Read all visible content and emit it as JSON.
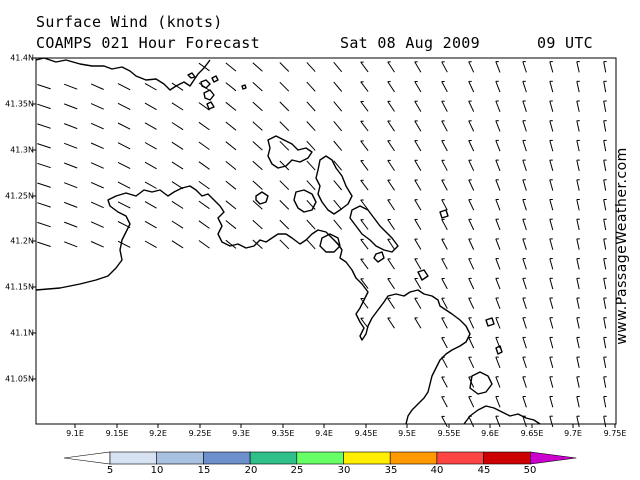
{
  "header": {
    "line1": "Surface Wind (knots)",
    "model": "COAMPS 021 Hour Forecast",
    "date": "Sat 08 Aug 2009",
    "time": "09 UTC"
  },
  "watermark": "www.PassageWeather.com",
  "latitude_labels": [
    "41.4N",
    "41.35N",
    "41.3N",
    "41.25N",
    "41.2N",
    "41.15N",
    "41.1N",
    "41.05N"
  ],
  "longitude_labels": [
    "9.1E",
    "9.15E",
    "9.2E",
    "9.25E",
    "9.3E",
    "9.35E",
    "9.4E",
    "9.45E",
    "9.5E",
    "9.55E",
    "9.6E",
    "9.65E",
    "9.7E",
    "9.75E"
  ],
  "colorbar": {
    "labels": [
      "5",
      "10",
      "15",
      "20",
      "25",
      "30",
      "35",
      "40",
      "45",
      "50"
    ],
    "colors": [
      "#ffffff",
      "#d6e2f2",
      "#a9c1e0",
      "#6d90cc",
      "#2fc08a",
      "#66ff66",
      "#ffee00",
      "#ff9900",
      "#ff4444",
      "#cc0000",
      "#cc00cc"
    ]
  },
  "map_colors": {
    "coast": "#000000",
    "arrow": "#000000",
    "frame": "#000000"
  }
}
